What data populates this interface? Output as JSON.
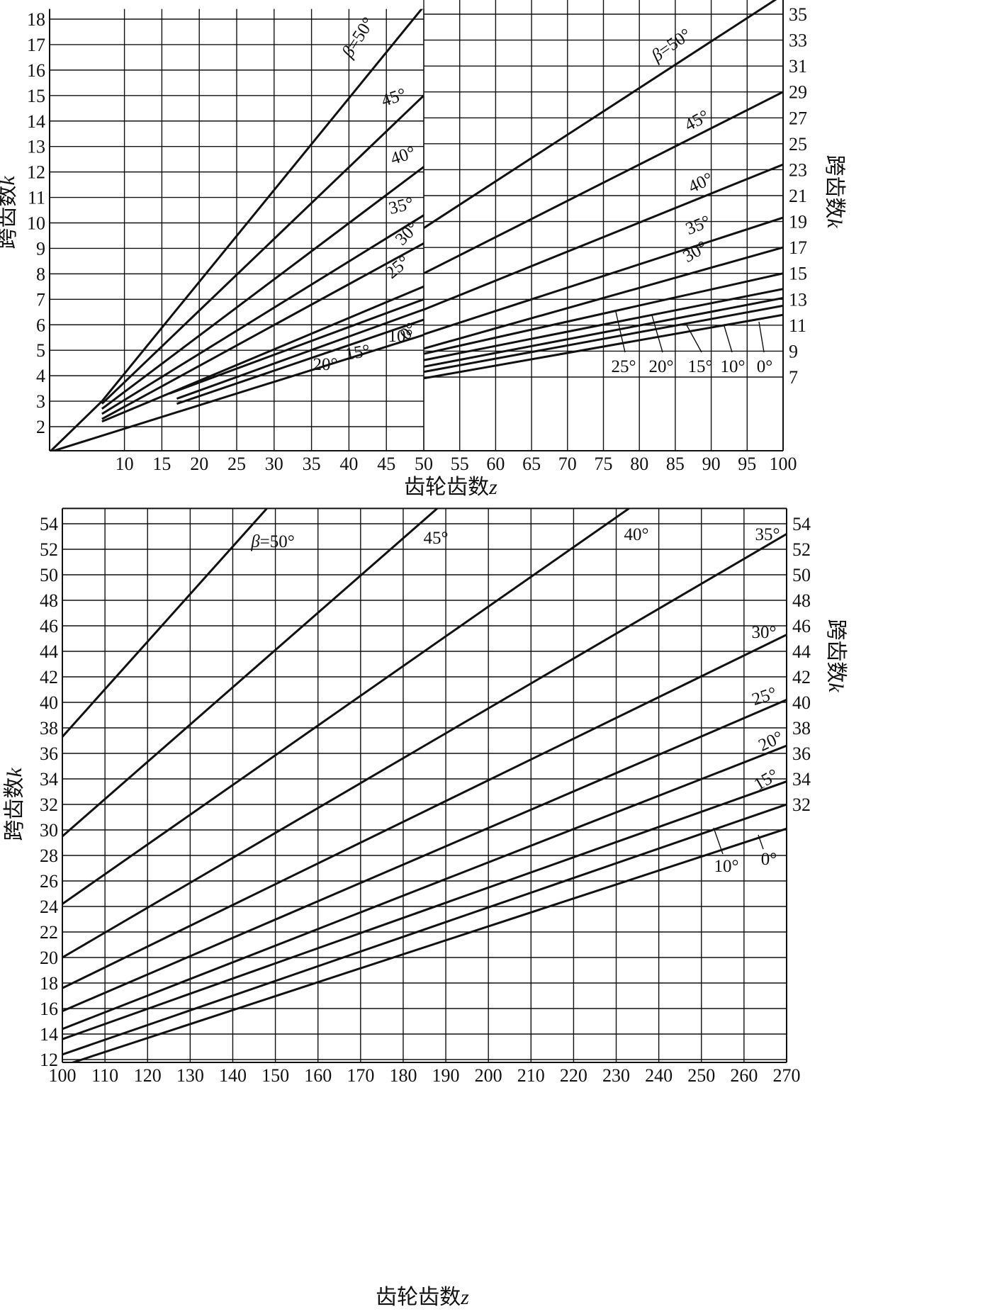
{
  "chart_data": [
    {
      "type": "line",
      "panel": "top-left",
      "xlabel": "",
      "ylabel": "跨齿数k",
      "xlim": [
        0,
        50
      ],
      "ylim": [
        1,
        18.4
      ],
      "x_ticks": [
        10,
        15,
        20,
        25,
        30,
        35,
        40,
        45,
        50
      ],
      "y_ticks": [
        2,
        3,
        4,
        5,
        6,
        7,
        8,
        9,
        10,
        11,
        12,
        13,
        14,
        15,
        16,
        17,
        18
      ],
      "grid": true,
      "series": [
        {
          "name": "β=50°",
          "label": "β=50°",
          "x": [
            0,
            7,
            50
          ],
          "y": [
            1,
            3,
            18.5
          ]
        },
        {
          "name": "45°",
          "label": "45°",
          "x": [
            7,
            50
          ],
          "y": [
            2.9,
            15
          ]
        },
        {
          "name": "40°",
          "label": "40°",
          "x": [
            7,
            50
          ],
          "y": [
            2.7,
            12.2
          ]
        },
        {
          "name": "35°",
          "label": "35°",
          "x": [
            7,
            50
          ],
          "y": [
            2.5,
            10.3
          ]
        },
        {
          "name": "30°",
          "label": "30°",
          "x": [
            7,
            50
          ],
          "y": [
            2.3,
            9.2
          ]
        },
        {
          "name": "25°",
          "label": "25°",
          "x": [
            7,
            50
          ],
          "y": [
            2.2,
            7.5
          ]
        },
        {
          "name": "20°",
          "label": "20°",
          "x": [
            16,
            50
          ],
          "y": [
            3.3,
            7
          ]
        },
        {
          "name": "15°",
          "label": "15°",
          "x": [
            17,
            50
          ],
          "y": [
            3.1,
            6.6
          ]
        },
        {
          "name": "10°",
          "label": "10°",
          "x": [
            17,
            50
          ],
          "y": [
            2.9,
            6.2
          ]
        },
        {
          "name": "0°",
          "label": "0°",
          "x": [
            0,
            50
          ],
          "y": [
            1,
            5.6
          ]
        }
      ],
      "labels": [
        "β=50°",
        "45°",
        "40°",
        "35°",
        "30°",
        "25°",
        "20°",
        "15°",
        "10°",
        "0°"
      ]
    },
    {
      "type": "line",
      "panel": "top-right",
      "xlabel": "齿轮齿数z",
      "ylabel": "跨齿数k",
      "xlim": [
        50,
        100
      ],
      "ylim": [
        5,
        36.4
      ],
      "x_ticks": [
        50,
        55,
        60,
        65,
        70,
        75,
        80,
        85,
        90,
        95,
        100
      ],
      "y_ticks": [
        7,
        9,
        11,
        13,
        15,
        17,
        19,
        21,
        23,
        25,
        27,
        29,
        31,
        33,
        35
      ],
      "grid": true,
      "series": [
        {
          "name": "β=50°",
          "label": "β=50°",
          "x": [
            50,
            100
          ],
          "y": [
            18.5,
            36.5
          ]
        },
        {
          "name": "45°",
          "label": "45°",
          "x": [
            50,
            100
          ],
          "y": [
            15,
            29
          ]
        },
        {
          "name": "40°",
          "label": "40°",
          "x": [
            50,
            100
          ],
          "y": [
            12.2,
            23.4
          ]
        },
        {
          "name": "35°",
          "label": "35°",
          "x": [
            50,
            100
          ],
          "y": [
            10.3,
            19.3
          ]
        },
        {
          "name": "30°",
          "label": "30°",
          "x": [
            50,
            100
          ],
          "y": [
            9.2,
            17
          ]
        },
        {
          "name": "25°",
          "label": "25°",
          "x": [
            50,
            100
          ],
          "y": [
            8.8,
            15
          ]
        },
        {
          "name": "20°",
          "label": "20°",
          "x": [
            50,
            100
          ],
          "y": [
            8.3,
            13.8
          ]
        },
        {
          "name": "15°",
          "label": "15°",
          "x": [
            50,
            100
          ],
          "y": [
            7.8,
            13.1
          ]
        },
        {
          "name": "10°",
          "label": "10°",
          "x": [
            50,
            100
          ],
          "y": [
            7.4,
            12.5
          ]
        },
        {
          "name": "0°",
          "label": "0°",
          "x": [
            50,
            100
          ],
          "y": [
            6.9,
            11.8
          ]
        }
      ],
      "labels": [
        "β=50°",
        "45°",
        "40°",
        "35°",
        "30°",
        "25°",
        "20°",
        "15°",
        "10°",
        "0°"
      ]
    },
    {
      "type": "line",
      "panel": "bottom",
      "xlabel": "齿轮齿数z",
      "ylabel": "跨齿数k",
      "xlim": [
        100,
        270
      ],
      "ylim": [
        11.5,
        55.2
      ],
      "x_ticks": [
        100,
        110,
        120,
        130,
        140,
        150,
        160,
        170,
        180,
        190,
        200,
        210,
        220,
        230,
        240,
        250,
        260,
        270
      ],
      "y_ticks_left": [
        12,
        14,
        16,
        18,
        20,
        22,
        24,
        26,
        28,
        30,
        32,
        34,
        36,
        38,
        40,
        42,
        44,
        46,
        48,
        50,
        52,
        54
      ],
      "y_ticks_right": [
        32,
        34,
        36,
        38,
        40,
        42,
        44,
        46,
        48,
        50,
        52,
        54
      ],
      "grid": true,
      "series": [
        {
          "name": "β=50°",
          "label": "β=50°",
          "x": [
            100,
            148
          ],
          "y": [
            37.3,
            55.2
          ]
        },
        {
          "name": "45°",
          "label": "45°",
          "x": [
            100,
            188
          ],
          "y": [
            29.5,
            55.2
          ]
        },
        {
          "name": "40°",
          "label": "40°",
          "x": [
            100,
            233
          ],
          "y": [
            24.2,
            55.2
          ]
        },
        {
          "name": "35°",
          "label": "35°",
          "x": [
            100,
            270
          ],
          "y": [
            20,
            53.2
          ]
        },
        {
          "name": "30°",
          "label": "30°",
          "x": [
            100,
            270
          ],
          "y": [
            17.6,
            45.3
          ]
        },
        {
          "name": "25°",
          "label": "25°",
          "x": [
            100,
            270
          ],
          "y": [
            15.8,
            40.2
          ]
        },
        {
          "name": "20°",
          "label": "20°",
          "x": [
            100,
            270
          ],
          "y": [
            14.4,
            36.6
          ]
        },
        {
          "name": "15°",
          "label": "15°",
          "x": [
            100,
            270
          ],
          "y": [
            13.6,
            33.8
          ]
        },
        {
          "name": "10°",
          "label": "10°",
          "x": [
            100,
            270
          ],
          "y": [
            12.4,
            32
          ]
        },
        {
          "name": "0°",
          "label": "0°",
          "x": [
            100,
            270
          ],
          "y": [
            11.5,
            30.1
          ]
        }
      ],
      "labels": [
        "β=50°",
        "45°",
        "40°",
        "35°",
        "30°",
        "25°",
        "20°",
        "15°",
        "10°",
        "0°"
      ]
    }
  ]
}
